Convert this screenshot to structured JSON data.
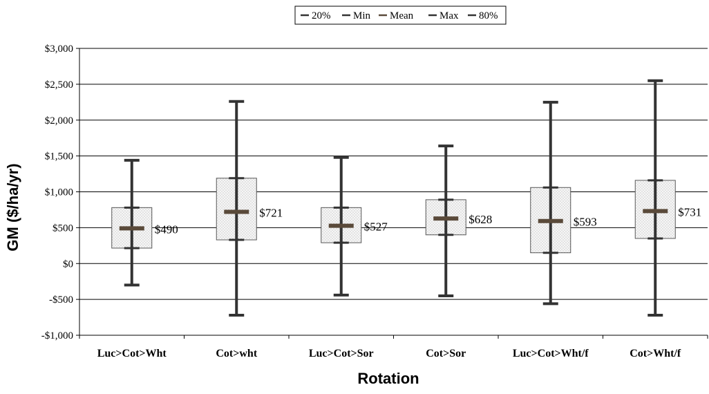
{
  "chart_data": {
    "type": "box",
    "title": "",
    "xlabel": "Rotation",
    "ylabel": "GM ($/ha/yr)",
    "ylim": [
      -1000,
      3000
    ],
    "y_ticks": [
      -1000,
      -500,
      0,
      500,
      1000,
      1500,
      2000,
      2500,
      3000
    ],
    "y_tick_labels": [
      "-$1,000",
      "-$500",
      "$0",
      "$500",
      "$1,000",
      "$1,500",
      "$2,000",
      "$2,500",
      "$3,000"
    ],
    "grid": true,
    "legend": {
      "placement": "top-center",
      "entries": [
        "20%",
        "Min",
        "Mean",
        "Max",
        "80%"
      ]
    },
    "colors": {
      "whisker": "#333333",
      "mean_marker": "#5a4a3a",
      "box_fill": "#f3f3f3",
      "box_border": "#555555",
      "gridline": "#000000"
    },
    "categories": [
      "Luc>Cot>Wht",
      "Cot>wht",
      "Luc>Cot>Sor",
      "Cot>Sor",
      "Luc>Cot>Wht/f",
      "Cot>Wht/f"
    ],
    "series": [
      {
        "name": "20%",
        "values": [
          215,
          330,
          290,
          400,
          150,
          350
        ]
      },
      {
        "name": "Min",
        "values": [
          -300,
          -720,
          -440,
          -450,
          -560,
          -720
        ]
      },
      {
        "name": "Mean",
        "values": [
          490,
          721,
          527,
          628,
          593,
          731
        ]
      },
      {
        "name": "Max",
        "values": [
          1440,
          2260,
          1480,
          1640,
          2250,
          2550
        ]
      },
      {
        "name": "80%",
        "values": [
          780,
          1190,
          780,
          890,
          1060,
          1160
        ]
      }
    ],
    "mean_labels": [
      "$490",
      "$721",
      "$527",
      "$628",
      "$593",
      "$731"
    ]
  }
}
